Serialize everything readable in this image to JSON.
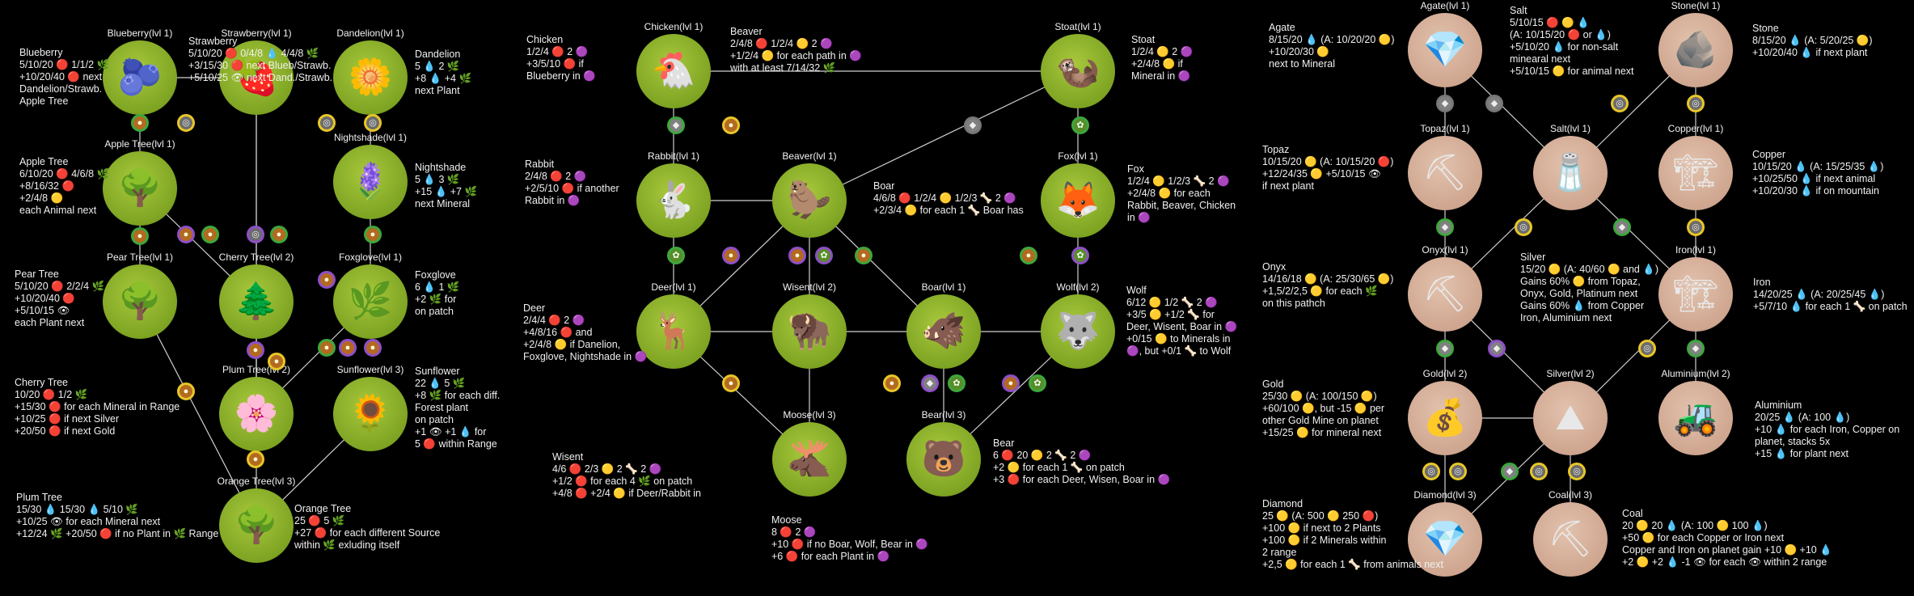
{
  "panels": [
    {
      "nodes": [
        {
          "id": "blueberry",
          "title": "Blueberry(lvl 1)",
          "art": "🫐",
          "style": "green"
        },
        {
          "id": "strawberry",
          "title": "Strawberry(lvl 1)",
          "art": "🍓",
          "style": "green"
        },
        {
          "id": "dandelion",
          "title": "Dandelion(lvl 1)",
          "art": "🌼",
          "style": "green"
        },
        {
          "id": "apple",
          "title": "Apple Tree(lvl 1)",
          "art": "🌳",
          "style": "green"
        },
        {
          "id": "nightshade",
          "title": "Nightshade(lvl 1)",
          "art": "🪻",
          "style": "green"
        },
        {
          "id": "pear",
          "title": "Pear Tree(lvl 1)",
          "art": "🌳",
          "style": "green"
        },
        {
          "id": "cherry",
          "title": "Cherry Tree(lvl 2)",
          "art": "🌲",
          "style": "green"
        },
        {
          "id": "foxglove",
          "title": "Foxglove(lvl 1)",
          "art": "🌿",
          "style": "green"
        },
        {
          "id": "plum",
          "title": "Plum Tree(lvl 2)",
          "art": "🌸",
          "style": "green"
        },
        {
          "id": "sunflower",
          "title": "Sunflower(lvl 3)",
          "art": "🌻",
          "style": "green"
        },
        {
          "id": "orange",
          "title": "Orange Tree(lvl 3)",
          "art": "🌳",
          "style": "green"
        }
      ],
      "descriptions": [
        {
          "id": "d-blueberry",
          "lines": [
            "Blueberry",
            "5/10/20 🔴 1/1/2 🌿",
            "+10/20/40 🔴 next",
            "Dandelion/Strawb.",
            "Apple Tree"
          ]
        },
        {
          "id": "d-strawberry",
          "lines": [
            "Strawberry",
            "5/10/20 🔴 0/4/8 💧 4/4/8 🌿",
            "+3/15/30 🔴 next Blueb/Strawb.",
            "+5/10/25 👁 next Dand./Strawb."
          ]
        },
        {
          "id": "d-dandelion",
          "lines": [
            "Dandelion",
            "5 💧 2 🌿",
            "+8 💧 +4 🌿",
            "next Plant"
          ]
        },
        {
          "id": "d-apple",
          "lines": [
            "Apple Tree",
            "6/10/20 🔴 4/6/8 🌿",
            "+8/16/32 🔴",
            "+2/4/8 🟡",
            "each Animal next"
          ]
        },
        {
          "id": "d-nightshade",
          "lines": [
            "Nightshade",
            "5 💧 3 🌿",
            "+15 💧 +7 🌿",
            "next Mineral"
          ]
        },
        {
          "id": "d-pear",
          "lines": [
            "Pear Tree",
            "5/10/20 🔴 2/2/4 🌿",
            "+10/20/40 🔴",
            "+5/10/15 👁",
            "each Plant next"
          ]
        },
        {
          "id": "d-foxglove",
          "lines": [
            "Foxglove",
            "6 💧 1 🌿",
            "+2 🌿 for",
            "on patch"
          ]
        },
        {
          "id": "d-cherry",
          "lines": [
            "Cherry Tree",
            "10/20 🔴 1/2 🌿",
            "+15/30 🔴 for each Mineral in Range",
            "+10/25 🔴 if next Silver",
            "+20/50 🔴 if next Gold"
          ]
        },
        {
          "id": "d-sunflower",
          "lines": [
            "Sunflower",
            "22 💧 5 🌿",
            "+8 🌿 for each diff.",
            "Forest plant",
            "on patch",
            "+1 👁 +1 💧 for",
            "5 🔴 within Range"
          ]
        },
        {
          "id": "d-plum",
          "lines": [
            "Plum Tree",
            "15/30 💧 15/30 💧 5/10 🌿",
            "+10/25 👁 for each Mineral next",
            "+12/24 🌿 +20/50 🔴 if no Plant in 🌿 Range"
          ]
        },
        {
          "id": "d-orange",
          "lines": [
            "Orange Tree",
            "25 🔴 5 🌿",
            "+27 🔴 for each different Source",
            "within 🌿 exluding itself"
          ]
        }
      ]
    },
    {
      "nodes": [
        {
          "id": "chicken",
          "title": "Chicken(lvl 1)",
          "art": "🐔",
          "style": "green"
        },
        {
          "id": "stoat",
          "title": "Stoat(lvl 1)",
          "art": "🦦",
          "style": "green"
        },
        {
          "id": "rabbit",
          "title": "Rabbit(lvl 1)",
          "art": "🐇",
          "style": "green"
        },
        {
          "id": "beaver",
          "title": "Beaver(lvl 1)",
          "art": "🦫",
          "style": "green"
        },
        {
          "id": "fox",
          "title": "Fox(lvl 1)",
          "art": "🦊",
          "style": "green"
        },
        {
          "id": "deer",
          "title": "Deer(lvl 1)",
          "art": "🦌",
          "style": "green"
        },
        {
          "id": "wisent",
          "title": "Wisent(lvl 2)",
          "art": "🦬",
          "style": "green"
        },
        {
          "id": "boar",
          "title": "Boar(lvl 1)",
          "art": "🐗",
          "style": "green"
        },
        {
          "id": "wolf",
          "title": "Wolf(lvl 2)",
          "art": "🐺",
          "style": "green"
        },
        {
          "id": "moose",
          "title": "Moose(lvl 3)",
          "art": "🫎",
          "style": "green"
        },
        {
          "id": "bear",
          "title": "Bear(lvl 3)",
          "art": "🐻",
          "style": "green"
        }
      ],
      "descriptions": [
        {
          "id": "d-chicken",
          "lines": [
            "Chicken",
            "1/2/4 🔴 2 🟣",
            "+3/5/10 🔴 if",
            "Blueberry in 🟣"
          ]
        },
        {
          "id": "d-beaver",
          "lines": [
            "Beaver",
            "2/4/8 🔴 1/2/4 🟡 2 🟣",
            "+1/2/4 🟡 for each path in 🟣",
            "with at least 7/14/32 🌿"
          ]
        },
        {
          "id": "d-stoat",
          "lines": [
            "Stoat",
            "1/2/4 🟡 2 🟣",
            "+2/4/8 🟡 if",
            "Mineral in 🟣"
          ]
        },
        {
          "id": "d-rabbit",
          "lines": [
            "Rabbit",
            "2/4/8 🔴 2 🟣",
            "+2/5/10 🔴 if another",
            "Rabbit in 🟣"
          ]
        },
        {
          "id": "d-boar",
          "lines": [
            "Boar",
            "4/6/8 🔴 1/2/4 🟡 1/2/3 🦴 2 🟣",
            "+2/3/4 🟡 for each 1 🦴 Boar has"
          ]
        },
        {
          "id": "d-fox",
          "lines": [
            "Fox",
            "1/2/4 🟡 1/2/3 🦴 2 🟣",
            "+2/4/8 🟡 for each",
            "Rabbit, Beaver, Chicken",
            "in 🟣"
          ]
        },
        {
          "id": "d-deer",
          "lines": [
            "Deer",
            "2/4/4 🔴 2 🟣",
            "+4/8/16 🔴 and",
            "+2/4/8 🟡 if Danelion,",
            "Foxglove, Nightshade in 🟣"
          ]
        },
        {
          "id": "d-wolf",
          "lines": [
            "Wolf",
            "6/12 🟡 1/2 🦴 2 🟣",
            "+3/5 🟡 +1/2 🦴 for",
            "Deer, Wisent, Boar in 🟣",
            "+0/15 🟡 to Minerals in",
            "🟣, but +0/1 🦴 to Wolf"
          ]
        },
        {
          "id": "d-wisent",
          "lines": [
            "Wisent",
            "4/6 🔴 2/3 🟡 2 🦴 2 🟣",
            "+1/2 🔴 for each 4 🌿 on patch",
            "+4/8 🔴 +2/4 🟡 if Deer/Rabbit in"
          ]
        },
        {
          "id": "d-bear",
          "lines": [
            "Bear",
            "6 🔴 20 🟡 2 🦴 2 🟣",
            "+2 🟡 for each 1 🦴 on patch",
            "+3 🔴 for each Deer, Wisen, Boar in 🟣"
          ]
        },
        {
          "id": "d-moose",
          "lines": [
            "Moose",
            "8 🔴 2 🟣",
            "+10 🔴 if no Boar, Wolf, Bear in 🟣",
            "+6 🔴 for each Plant in 🟣"
          ]
        }
      ]
    },
    {
      "nodes": [
        {
          "id": "agate",
          "title": "Agate(lvl 1)",
          "art": "💎",
          "style": "tan"
        },
        {
          "id": "stone",
          "title": "Stone(lvl 1)",
          "art": "🪨",
          "style": "tan"
        },
        {
          "id": "topaz",
          "title": "Topaz(lvl 1)",
          "art": "⛏",
          "style": "tan"
        },
        {
          "id": "salt",
          "title": "Salt(lvl 1)",
          "art": "🧂",
          "style": "tan"
        },
        {
          "id": "copper",
          "title": "Copper(lvl 1)",
          "art": "🏗",
          "style": "tan"
        },
        {
          "id": "onyx",
          "title": "Onyx(lvl 1)",
          "art": "⛏",
          "style": "tan"
        },
        {
          "id": "iron",
          "title": "Iron(lvl 1)",
          "art": "🏗",
          "style": "tan"
        },
        {
          "id": "gold",
          "title": "Gold(lvl 2)",
          "art": "💰",
          "style": "tan"
        },
        {
          "id": "silver",
          "title": "Silver(lvl 2)",
          "art": "⛰",
          "style": "tan"
        },
        {
          "id": "aluminium",
          "title": "Aluminium(lvl 2)",
          "art": "🚜",
          "style": "tan"
        },
        {
          "id": "diamond",
          "title": "Diamond(lvl 3)",
          "art": "💎",
          "style": "tan"
        },
        {
          "id": "coal",
          "title": "Coal(lvl 3)",
          "art": "⛏",
          "style": "tan"
        }
      ],
      "descriptions": [
        {
          "id": "d-agate",
          "lines": [
            "Agate",
            "8/15/20 💧 (A: 10/20/20 🟡)",
            "+10/20/30 🟡",
            "next to Mineral"
          ]
        },
        {
          "id": "d-salt",
          "lines": [
            "Salt",
            "5/10/15 🔴 🟡 💧",
            "(A: 10/15/20 🔴 or 💧)",
            "+5/10/20 💧 for non-salt",
            "minearal next",
            "+5/10/15 🟡 for animal next"
          ]
        },
        {
          "id": "d-stone",
          "lines": [
            "Stone",
            "8/15/20 💧 (A: 5/20/25 🟡)",
            "+10/20/40 💧 if next plant"
          ]
        },
        {
          "id": "d-topaz",
          "lines": [
            "Topaz",
            "10/15/20 🟡 (A: 10/15/20 🔴)",
            "+12/24/35 🟡 +5/10/15 👁",
            "if next plant"
          ]
        },
        {
          "id": "d-copper",
          "lines": [
            "Copper",
            "10/15/20 💧 (A: 15/25/35 💧)",
            "+10/25/50 💧 if next animal",
            "+10/20/30 💧 if on mountain"
          ]
        },
        {
          "id": "d-onyx",
          "lines": [
            "Onyx",
            "14/16/18 🟡 (A: 25/30/65 🟡)",
            "+1,5/2/2,5 🟡 for each 🌿",
            "on this pathch"
          ]
        },
        {
          "id": "d-silver",
          "lines": [
            "Silver",
            "15/20 🟡 (A: 40/60 🟡 and 💧)",
            "Gains 60% 🟡 from Topaz,",
            "Onyx, Gold, Platinum next",
            "Gains 60% 💧 from Copper",
            "Iron, Aluminium next"
          ]
        },
        {
          "id": "d-iron",
          "lines": [
            "Iron",
            "14/20/25 💧 (A: 20/25/45 💧)",
            "+5/7/10 💧 for each 1 🦴 on patch"
          ]
        },
        {
          "id": "d-gold",
          "lines": [
            "Gold",
            "25/30 🟡 (A: 100/150 🟡)",
            "+60/100 🟡, but -15 🟡 per",
            "other Gold Mine on planet",
            "+15/25 🟡 for mineral next"
          ]
        },
        {
          "id": "d-aluminium",
          "lines": [
            "Aluminium",
            "20/25 💧 (A: 100 💧)",
            "+10 💧 for each Iron, Copper on",
            "planet, stacks 5x",
            "+15 💧 for plant next"
          ]
        },
        {
          "id": "d-diamond",
          "lines": [
            "Diamond",
            "25 🟡 (A: 500 🟡 250 🔴)",
            "+100 🟡 if next to 2 Plants",
            "+100 🟡 if 2 Minerals within",
            "2 range",
            "+2,5 🟡 for each 1 🦴 from animals next"
          ]
        },
        {
          "id": "d-coal",
          "lines": [
            "Coal",
            "20 🟡 20 💧 (A: 100 🟡 100 💧)",
            "+50 🟡 for each Copper or Iron next",
            "Copper and Iron on planet gain +10 🟡 +10 💧",
            "+2 🟡 +2 💧 -1 👁 for each 👁 within 2 range"
          ]
        }
      ]
    }
  ],
  "badge_icons": {
    "food": "●",
    "any": "◎",
    "animal": "●",
    "mineral": "◆",
    "plant": "✿"
  },
  "colors": {
    "background": "#000000",
    "plant_node": "#8fb52a",
    "mineral_node": "#d4ad98",
    "link_green": "#3ca83c",
    "link_purple": "#8e4fc8",
    "link_yellow": "#e8c628",
    "link_gray": "#777777"
  }
}
